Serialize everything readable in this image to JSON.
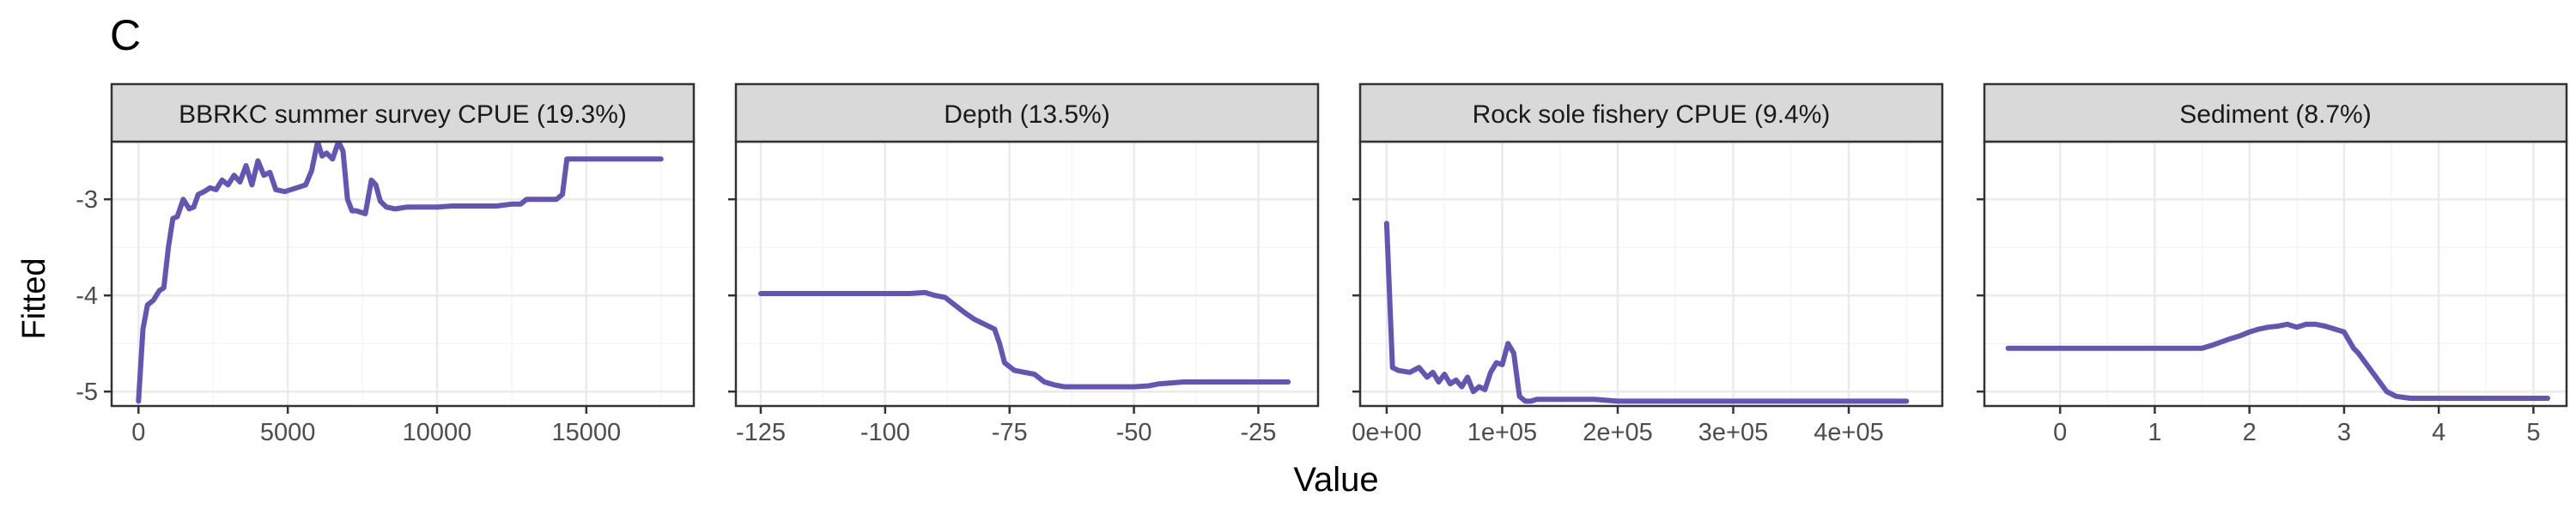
{
  "panel_tag": "C",
  "y_axis_title": "Fitted",
  "x_axis_title": "Value",
  "style": {
    "line_color": "#6454b4",
    "strip_fill": "#d9d9d9",
    "grid_major": "#ebebeb",
    "grid_minor": "#f5f5f5",
    "frame": "#333333"
  },
  "y_ticks": [
    -3,
    -4,
    -5
  ],
  "chart_data": [
    {
      "type": "line",
      "title": "BBRKC summer survey CPUE (19.3%)",
      "xlim": [
        -900,
        18600
      ],
      "ylim": [
        -5.15,
        -2.4
      ],
      "x_ticks": [
        0,
        5000,
        10000,
        15000
      ],
      "x_tick_labels": [
        "0",
        "5000",
        "10000",
        "15000"
      ],
      "x_minor": [
        2500,
        7500,
        12500,
        17500
      ],
      "x": [
        0,
        150,
        300,
        500,
        700,
        850,
        1000,
        1150,
        1300,
        1500,
        1700,
        1850,
        2000,
        2200,
        2400,
        2600,
        2800,
        3000,
        3200,
        3400,
        3600,
        3800,
        4000,
        4200,
        4400,
        4600,
        4900,
        5300,
        5600,
        5800,
        6000,
        6150,
        6300,
        6500,
        6700,
        6850,
        7000,
        7150,
        7300,
        7600,
        7800,
        7950,
        8100,
        8300,
        8600,
        9000,
        9500,
        10000,
        10500,
        11000,
        11500,
        12000,
        12500,
        12800,
        13000,
        13500,
        14000,
        14200,
        14350,
        15000,
        16000,
        17500
      ],
      "y": [
        -5.1,
        -4.35,
        -4.1,
        -4.05,
        -3.95,
        -3.92,
        -3.5,
        -3.2,
        -3.18,
        -3.0,
        -3.1,
        -3.08,
        -2.95,
        -2.92,
        -2.88,
        -2.9,
        -2.8,
        -2.85,
        -2.75,
        -2.82,
        -2.65,
        -2.85,
        -2.6,
        -2.75,
        -2.72,
        -2.9,
        -2.92,
        -2.88,
        -2.85,
        -2.7,
        -2.4,
        -2.55,
        -2.52,
        -2.58,
        -2.4,
        -2.5,
        -3.0,
        -3.12,
        -3.12,
        -3.15,
        -2.8,
        -2.85,
        -3.02,
        -3.08,
        -3.1,
        -3.08,
        -3.08,
        -3.08,
        -3.07,
        -3.07,
        -3.07,
        -3.07,
        -3.05,
        -3.05,
        -3.0,
        -3.0,
        -3.0,
        -2.95,
        -2.58,
        -2.58,
        -2.58,
        -2.58
      ]
    },
    {
      "type": "line",
      "title": "Depth (13.5%)",
      "xlim": [
        -130,
        -13
      ],
      "ylim": [
        -5.15,
        -2.4
      ],
      "x_ticks": [
        -125,
        -100,
        -75,
        -50,
        -25
      ],
      "x_tick_labels": [
        "-125",
        "-100",
        "-75",
        "-50",
        "-25"
      ],
      "x_minor": [
        -112.5,
        -87.5,
        -62.5,
        -37.5
      ],
      "x": [
        -125,
        -110,
        -100,
        -95,
        -92,
        -90,
        -88,
        -86,
        -84,
        -82,
        -80,
        -78,
        -77,
        -76,
        -74,
        -72,
        -70,
        -68,
        -66,
        -64,
        -62,
        -60,
        -55,
        -50,
        -47,
        -45,
        -40,
        -35,
        -30,
        -25,
        -19
      ],
      "y": [
        -3.98,
        -3.98,
        -3.98,
        -3.98,
        -3.97,
        -4.0,
        -4.02,
        -4.1,
        -4.18,
        -4.25,
        -4.3,
        -4.35,
        -4.5,
        -4.7,
        -4.78,
        -4.8,
        -4.82,
        -4.9,
        -4.93,
        -4.95,
        -4.95,
        -4.95,
        -4.95,
        -4.95,
        -4.94,
        -4.92,
        -4.9,
        -4.9,
        -4.9,
        -4.9,
        -4.9
      ]
    },
    {
      "type": "line",
      "title": "Rock sole fishery CPUE (9.4%)",
      "xlim": [
        -23000,
        481000
      ],
      "ylim": [
        -5.15,
        -2.4
      ],
      "x_ticks": [
        0,
        100000,
        200000,
        300000,
        400000
      ],
      "x_tick_labels": [
        "0e+00",
        "1e+05",
        "2e+05",
        "3e+05",
        "4e+05"
      ],
      "x_minor": [
        50000,
        150000,
        250000,
        350000,
        450000
      ],
      "x": [
        0,
        5000,
        10000,
        20000,
        28000,
        35000,
        40000,
        45000,
        50000,
        55000,
        60000,
        65000,
        70000,
        75000,
        80000,
        85000,
        90000,
        95000,
        100000,
        105000,
        110000,
        115000,
        120000,
        125000,
        130000,
        150000,
        180000,
        200000,
        230000,
        300000,
        400000,
        450000
      ],
      "y": [
        -3.25,
        -4.75,
        -4.78,
        -4.8,
        -4.75,
        -4.85,
        -4.8,
        -4.9,
        -4.82,
        -4.92,
        -4.88,
        -4.95,
        -4.85,
        -5.0,
        -4.95,
        -4.98,
        -4.8,
        -4.7,
        -4.72,
        -4.5,
        -4.6,
        -5.05,
        -5.1,
        -5.1,
        -5.08,
        -5.08,
        -5.08,
        -5.1,
        -5.1,
        -5.1,
        -5.1,
        -5.1
      ]
    },
    {
      "type": "line",
      "title": "Sediment (8.7%)",
      "xlim": [
        -0.8,
        5.35
      ],
      "ylim": [
        -5.15,
        -2.4
      ],
      "x_ticks": [
        0,
        1,
        2,
        3,
        4,
        5
      ],
      "x_tick_labels": [
        "0",
        "1",
        "2",
        "3",
        "4",
        "5"
      ],
      "x_minor": [
        0.5,
        1.5,
        2.5,
        3.5,
        4.5
      ],
      "x": [
        -0.55,
        0,
        0.5,
        1,
        1.5,
        1.6,
        1.8,
        1.9,
        2.0,
        2.1,
        2.2,
        2.3,
        2.4,
        2.5,
        2.6,
        2.7,
        2.8,
        2.9,
        3.0,
        3.1,
        3.15,
        3.3,
        3.45,
        3.55,
        3.7,
        4.0,
        4.5,
        5.15
      ],
      "y": [
        -4.55,
        -4.55,
        -4.55,
        -4.55,
        -4.55,
        -4.52,
        -4.45,
        -4.42,
        -4.38,
        -4.35,
        -4.33,
        -4.32,
        -4.3,
        -4.33,
        -4.3,
        -4.3,
        -4.32,
        -4.35,
        -4.38,
        -4.55,
        -4.6,
        -4.8,
        -5.0,
        -5.05,
        -5.07,
        -5.07,
        -5.07,
        -5.07
      ]
    }
  ]
}
